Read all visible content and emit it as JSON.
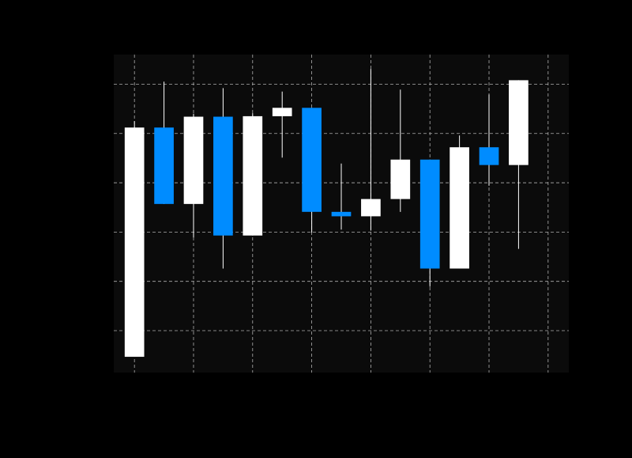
{
  "chart_data": {
    "type": "candlestick",
    "title": "",
    "xlabel": "",
    "ylabel": "",
    "xlim": [
      -0.7,
      14.7
    ],
    "ylim": [
      -0.85,
      5.6
    ],
    "grid": true,
    "colors": {
      "background": "#000000",
      "plot_background": "#0b0b0b",
      "grid": "#b0b0b0",
      "up": "#ffffff",
      "down": "#008cff",
      "wick": "#ffffff"
    },
    "candles": [
      {
        "x": 0,
        "open": -0.53,
        "high": 4.25,
        "low": -0.53,
        "close": 4.12
      },
      {
        "x": 1,
        "open": 4.12,
        "high": 5.05,
        "low": 2.57,
        "close": 2.57
      },
      {
        "x": 2,
        "open": 2.57,
        "high": 4.4,
        "low": 1.89,
        "close": 4.34
      },
      {
        "x": 3,
        "open": 4.34,
        "high": 4.92,
        "low": 1.26,
        "close": 1.93
      },
      {
        "x": 4,
        "open": 1.93,
        "high": 4.41,
        "low": 1.93,
        "close": 4.35
      },
      {
        "x": 5,
        "open": 4.35,
        "high": 4.85,
        "low": 3.51,
        "close": 4.52
      },
      {
        "x": 6,
        "open": 4.52,
        "high": 4.52,
        "low": 1.99,
        "close": 2.41
      },
      {
        "x": 7,
        "open": 2.41,
        "high": 3.39,
        "low": 2.05,
        "close": 2.32
      },
      {
        "x": 8,
        "open": 2.32,
        "high": 5.31,
        "low": 2.03,
        "close": 2.67
      },
      {
        "x": 9,
        "open": 2.67,
        "high": 4.89,
        "low": 2.41,
        "close": 3.47
      },
      {
        "x": 10,
        "open": 3.47,
        "high": 3.47,
        "low": 0.89,
        "close": 1.26
      },
      {
        "x": 11,
        "open": 1.26,
        "high": 3.96,
        "low": 1.26,
        "close": 3.72
      },
      {
        "x": 12,
        "open": 3.72,
        "high": 4.79,
        "low": 2.94,
        "close": 3.36
      },
      {
        "x": 13,
        "open": 3.36,
        "high": 5.08,
        "low": 1.66,
        "close": 5.08
      }
    ],
    "x_gridlines": [
      0,
      2,
      4,
      6,
      8,
      10,
      12,
      14
    ],
    "y_gridlines": [
      0,
      1,
      2,
      3,
      4,
      5
    ]
  }
}
